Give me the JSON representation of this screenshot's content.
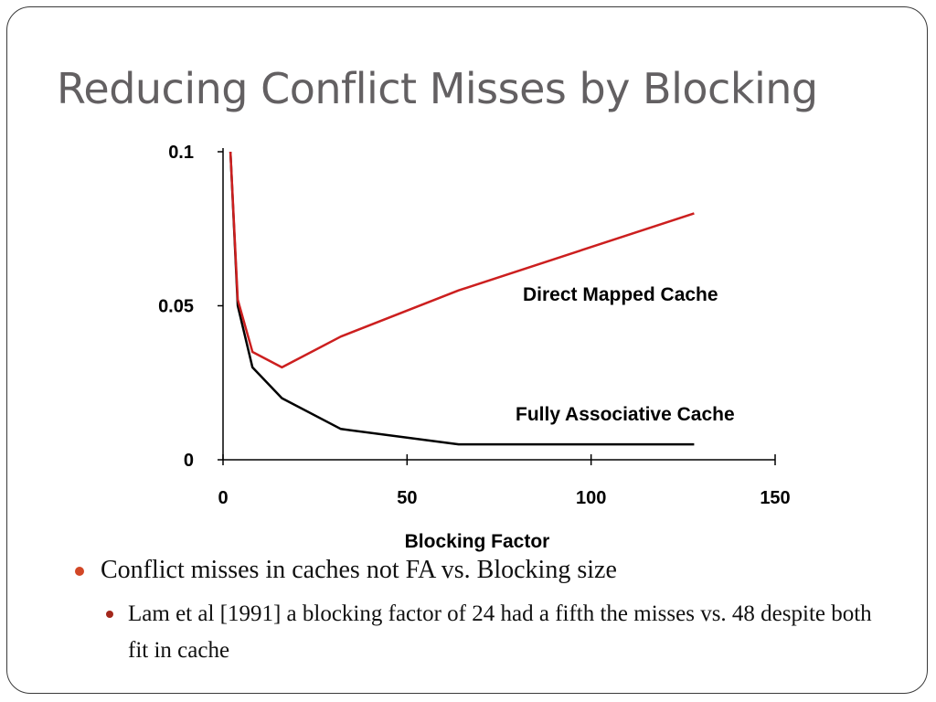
{
  "slide": {
    "title": "Reducing Conflict Misses by Blocking"
  },
  "chart_data": {
    "type": "line",
    "title": "",
    "xlabel": "Blocking Factor",
    "ylabel": "",
    "xlim": [
      0,
      150
    ],
    "ylim": [
      0,
      0.1
    ],
    "x_ticks": [
      0,
      50,
      100,
      150
    ],
    "x_tick_labels": [
      "0",
      "50",
      "100",
      "150"
    ],
    "y_ticks": [
      0,
      0.05,
      0.1
    ],
    "y_tick_labels": [
      "0",
      "0.05",
      "0.1"
    ],
    "grid": false,
    "legend": "none",
    "series": [
      {
        "name": "Direct Mapped Cache",
        "color": "#cc1f1f",
        "x": [
          2,
          4,
          8,
          16,
          32,
          64,
          128
        ],
        "y": [
          0.1,
          0.052,
          0.035,
          0.03,
          0.04,
          0.055,
          0.08
        ]
      },
      {
        "name": "Fully Associative Cache",
        "color": "#000000",
        "x": [
          2,
          4,
          8,
          16,
          32,
          64,
          128
        ],
        "y": [
          0.1,
          0.05,
          0.03,
          0.02,
          0.01,
          0.005,
          0.005
        ]
      }
    ]
  },
  "bullets": {
    "level1": "Conflict misses in caches not FA vs. Blocking size",
    "level2": "Lam et al [1991] a blocking factor of 24 had a fifth the misses vs. 48 despite both fit in cache"
  },
  "colors": {
    "bullet_primary": "#d24726",
    "bullet_secondary": "#a3271b",
    "title_text": "#636062"
  }
}
